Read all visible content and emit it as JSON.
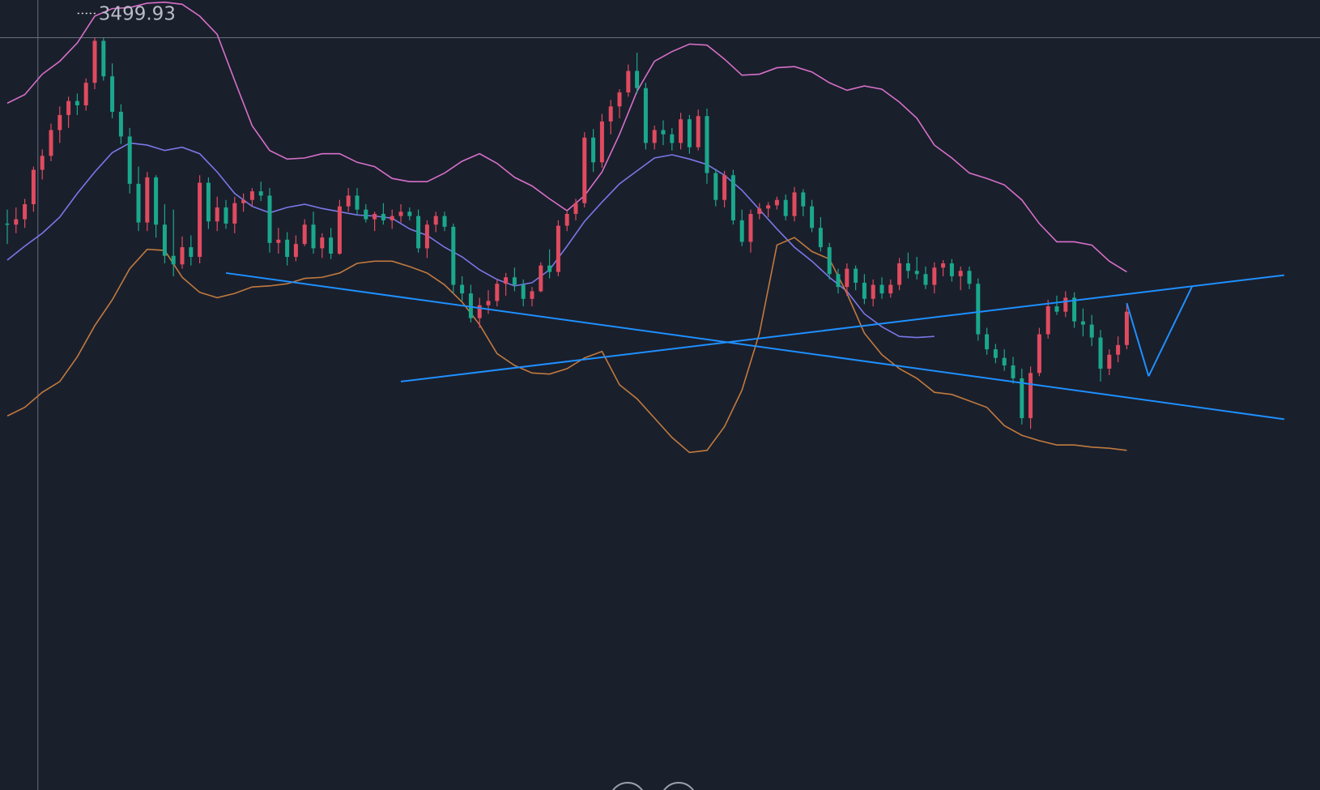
{
  "chart_data": {
    "type": "candlestick",
    "title": "",
    "xlabel": "",
    "ylabel": "",
    "ylim": [
      2800,
      3535
    ],
    "x_count": 146,
    "grid": false,
    "crosshair": {
      "price": 3499.93,
      "bar": 3.5
    },
    "peak_label": "3499.93",
    "colors": {
      "background": "#1a1f2c",
      "up": "#e04b5f",
      "down": "#1aa88c",
      "boll_upper": "#d670c8",
      "boll_mid": "#7a78e8",
      "boll_lower": "#c07a3e",
      "trendline": "#1e90ff",
      "crosshair": "#6a6f7c"
    },
    "candles": [
      [
        3327,
        3340,
        3308,
        3326
      ],
      [
        3326,
        3342,
        3318,
        3331
      ],
      [
        3331,
        3350,
        3323,
        3345
      ],
      [
        3345,
        3380,
        3338,
        3377
      ],
      [
        3377,
        3396,
        3368,
        3390
      ],
      [
        3390,
        3420,
        3385,
        3414
      ],
      [
        3414,
        3436,
        3402,
        3428
      ],
      [
        3428,
        3445,
        3416,
        3441
      ],
      [
        3441,
        3448,
        3428,
        3437
      ],
      [
        3437,
        3462,
        3432,
        3458
      ],
      [
        3458,
        3500,
        3452,
        3497
      ],
      [
        3497,
        3500,
        3460,
        3464
      ],
      [
        3464,
        3476,
        3425,
        3431
      ],
      [
        3431,
        3438,
        3401,
        3408
      ],
      [
        3408,
        3416,
        3355,
        3364
      ],
      [
        3364,
        3380,
        3320,
        3328
      ],
      [
        3328,
        3375,
        3320,
        3370
      ],
      [
        3370,
        3372,
        3314,
        3326
      ],
      [
        3326,
        3345,
        3290,
        3297
      ],
      [
        3297,
        3340,
        3278,
        3289
      ],
      [
        3289,
        3315,
        3285,
        3305
      ],
      [
        3305,
        3316,
        3288,
        3296
      ],
      [
        3296,
        3372,
        3290,
        3365
      ],
      [
        3365,
        3370,
        3322,
        3329
      ],
      [
        3329,
        3352,
        3320,
        3342
      ],
      [
        3342,
        3349,
        3322,
        3327
      ],
      [
        3327,
        3352,
        3318,
        3346
      ],
      [
        3346,
        3355,
        3338,
        3349
      ],
      [
        3349,
        3360,
        3343,
        3357
      ],
      [
        3357,
        3366,
        3348,
        3353
      ],
      [
        3353,
        3360,
        3300,
        3309
      ],
      [
        3309,
        3323,
        3299,
        3312
      ],
      [
        3312,
        3319,
        3288,
        3296
      ],
      [
        3296,
        3316,
        3292,
        3308
      ],
      [
        3308,
        3331,
        3306,
        3326
      ],
      [
        3326,
        3338,
        3299,
        3304
      ],
      [
        3304,
        3318,
        3295,
        3314
      ],
      [
        3314,
        3323,
        3294,
        3299
      ],
      [
        3299,
        3349,
        3298,
        3343
      ],
      [
        3343,
        3360,
        3338,
        3353
      ],
      [
        3353,
        3360,
        3335,
        3340
      ],
      [
        3340,
        3345,
        3328,
        3331
      ],
      [
        3331,
        3338,
        3320,
        3336
      ],
      [
        3336,
        3346,
        3326,
        3330
      ],
      [
        3330,
        3340,
        3322,
        3334
      ],
      [
        3334,
        3345,
        3328,
        3338
      ],
      [
        3338,
        3342,
        3330,
        3334
      ],
      [
        3334,
        3340,
        3300,
        3304
      ],
      [
        3304,
        3330,
        3295,
        3326
      ],
      [
        3326,
        3338,
        3319,
        3334
      ],
      [
        3334,
        3338,
        3320,
        3324
      ],
      [
        3324,
        3327,
        3262,
        3270
      ],
      [
        3270,
        3278,
        3255,
        3262
      ],
      [
        3262,
        3270,
        3235,
        3239
      ],
      [
        3239,
        3258,
        3230,
        3251
      ],
      [
        3251,
        3265,
        3243,
        3255
      ],
      [
        3255,
        3275,
        3250,
        3271
      ],
      [
        3271,
        3281,
        3260,
        3277
      ],
      [
        3277,
        3286,
        3264,
        3270
      ],
      [
        3270,
        3275,
        3250,
        3257
      ],
      [
        3257,
        3268,
        3250,
        3264
      ],
      [
        3264,
        3291,
        3263,
        3288
      ],
      [
        3288,
        3303,
        3276,
        3282
      ],
      [
        3282,
        3330,
        3278,
        3325
      ],
      [
        3325,
        3338,
        3320,
        3336
      ],
      [
        3336,
        3350,
        3330,
        3346
      ],
      [
        3346,
        3412,
        3342,
        3407
      ],
      [
        3407,
        3415,
        3375,
        3384
      ],
      [
        3384,
        3429,
        3379,
        3422
      ],
      [
        3422,
        3442,
        3410,
        3436
      ],
      [
        3436,
        3452,
        3425,
        3449
      ],
      [
        3449,
        3475,
        3445,
        3469
      ],
      [
        3469,
        3486,
        3448,
        3453
      ],
      [
        3453,
        3458,
        3396,
        3402
      ],
      [
        3402,
        3418,
        3396,
        3414
      ],
      [
        3414,
        3423,
        3400,
        3410
      ],
      [
        3410,
        3416,
        3395,
        3402
      ],
      [
        3402,
        3430,
        3396,
        3424
      ],
      [
        3424,
        3428,
        3392,
        3398
      ],
      [
        3398,
        3433,
        3395,
        3427
      ],
      [
        3427,
        3434,
        3364,
        3374
      ],
      [
        3374,
        3378,
        3343,
        3349
      ],
      [
        3349,
        3376,
        3342,
        3372
      ],
      [
        3372,
        3377,
        3326,
        3330
      ],
      [
        3330,
        3340,
        3306,
        3310
      ],
      [
        3310,
        3340,
        3300,
        3336
      ],
      [
        3336,
        3346,
        3331,
        3341
      ],
      [
        3341,
        3347,
        3333,
        3344
      ],
      [
        3344,
        3352,
        3340,
        3349
      ],
      [
        3349,
        3354,
        3330,
        3334
      ],
      [
        3334,
        3361,
        3329,
        3356
      ],
      [
        3356,
        3359,
        3334,
        3343
      ],
      [
        3343,
        3349,
        3319,
        3323
      ],
      [
        3323,
        3333,
        3301,
        3305
      ],
      [
        3305,
        3309,
        3275,
        3280
      ],
      [
        3280,
        3285,
        3262,
        3268
      ],
      [
        3268,
        3290,
        3260,
        3285
      ],
      [
        3285,
        3288,
        3265,
        3272
      ],
      [
        3272,
        3280,
        3252,
        3257
      ],
      [
        3257,
        3275,
        3250,
        3270
      ],
      [
        3270,
        3277,
        3257,
        3262
      ],
      [
        3262,
        3275,
        3258,
        3270
      ],
      [
        3270,
        3295,
        3265,
        3290
      ],
      [
        3290,
        3300,
        3276,
        3283
      ],
      [
        3283,
        3296,
        3275,
        3280
      ],
      [
        3280,
        3287,
        3266,
        3270
      ],
      [
        3270,
        3291,
        3262,
        3286
      ],
      [
        3286,
        3293,
        3278,
        3290
      ],
      [
        3290,
        3294,
        3273,
        3278
      ],
      [
        3278,
        3287,
        3265,
        3283
      ],
      [
        3283,
        3287,
        3266,
        3271
      ],
      [
        3271,
        3276,
        3218,
        3224
      ],
      [
        3224,
        3230,
        3205,
        3210
      ],
      [
        3210,
        3215,
        3197,
        3202
      ],
      [
        3202,
        3210,
        3190,
        3195
      ],
      [
        3195,
        3203,
        3178,
        3183
      ],
      [
        3183,
        3192,
        3140,
        3146
      ],
      [
        3146,
        3194,
        3136,
        3188
      ],
      [
        3188,
        3230,
        3185,
        3224
      ],
      [
        3224,
        3256,
        3220,
        3250
      ],
      [
        3250,
        3260,
        3242,
        3245
      ],
      [
        3245,
        3264,
        3240,
        3258
      ],
      [
        3258,
        3263,
        3230,
        3236
      ],
      [
        3236,
        3248,
        3222,
        3233
      ],
      [
        3233,
        3242,
        3213,
        3221
      ],
      [
        3221,
        3228,
        3180,
        3192
      ],
      [
        3192,
        3210,
        3186,
        3205
      ],
      [
        3205,
        3222,
        3198,
        3214
      ],
      [
        3214,
        3252,
        3210,
        3245
      ]
    ],
    "boll_upper_points": [
      [
        0,
        3439
      ],
      [
        2,
        3447
      ],
      [
        4,
        3466
      ],
      [
        6,
        3478
      ],
      [
        8,
        3495
      ],
      [
        10,
        3520
      ],
      [
        12,
        3527
      ],
      [
        14,
        3528
      ],
      [
        16,
        3532
      ],
      [
        18,
        3533
      ],
      [
        20,
        3531
      ],
      [
        22,
        3520
      ],
      [
        24,
        3503
      ],
      [
        26,
        3460
      ],
      [
        28,
        3418
      ],
      [
        30,
        3395
      ],
      [
        32,
        3387
      ],
      [
        34,
        3388
      ],
      [
        36,
        3392
      ],
      [
        38,
        3392
      ],
      [
        40,
        3384
      ],
      [
        42,
        3380
      ],
      [
        44,
        3369
      ],
      [
        46,
        3366
      ],
      [
        48,
        3366
      ],
      [
        50,
        3374
      ],
      [
        52,
        3385
      ],
      [
        54,
        3392
      ],
      [
        56,
        3383
      ],
      [
        58,
        3370
      ],
      [
        60,
        3362
      ],
      [
        62,
        3350
      ],
      [
        64,
        3339
      ],
      [
        66,
        3353
      ],
      [
        68,
        3375
      ],
      [
        70,
        3410
      ],
      [
        72,
        3450
      ],
      [
        74,
        3478
      ],
      [
        76,
        3487
      ],
      [
        78,
        3494
      ],
      [
        80,
        3493
      ],
      [
        82,
        3480
      ],
      [
        84,
        3465
      ],
      [
        86,
        3466
      ],
      [
        88,
        3472
      ],
      [
        90,
        3473
      ],
      [
        92,
        3468
      ],
      [
        94,
        3458
      ],
      [
        96,
        3451
      ],
      [
        98,
        3455
      ],
      [
        100,
        3452
      ],
      [
        102,
        3440
      ],
      [
        104,
        3425
      ],
      [
        106,
        3400
      ],
      [
        108,
        3388
      ],
      [
        110,
        3374
      ],
      [
        112,
        3369
      ],
      [
        114,
        3363
      ],
      [
        116,
        3349
      ],
      [
        118,
        3327
      ],
      [
        120,
        3310
      ],
      [
        122,
        3310
      ],
      [
        124,
        3307
      ],
      [
        126,
        3292
      ],
      [
        128,
        3282
      ]
    ],
    "boll_mid_points": [
      [
        0,
        3293
      ],
      [
        2,
        3306
      ],
      [
        4,
        3318
      ],
      [
        6,
        3333
      ],
      [
        8,
        3355
      ],
      [
        10,
        3375
      ],
      [
        12,
        3393
      ],
      [
        14,
        3402
      ],
      [
        16,
        3400
      ],
      [
        18,
        3395
      ],
      [
        20,
        3398
      ],
      [
        22,
        3392
      ],
      [
        24,
        3375
      ],
      [
        26,
        3355
      ],
      [
        28,
        3343
      ],
      [
        30,
        3337
      ],
      [
        32,
        3342
      ],
      [
        34,
        3345
      ],
      [
        36,
        3341
      ],
      [
        38,
        3338
      ],
      [
        40,
        3335
      ],
      [
        42,
        3334
      ],
      [
        44,
        3332
      ],
      [
        46,
        3322
      ],
      [
        48,
        3316
      ],
      [
        50,
        3305
      ],
      [
        52,
        3296
      ],
      [
        54,
        3284
      ],
      [
        56,
        3275
      ],
      [
        58,
        3269
      ],
      [
        60,
        3272
      ],
      [
        62,
        3284
      ],
      [
        64,
        3306
      ],
      [
        66,
        3329
      ],
      [
        68,
        3347
      ],
      [
        70,
        3364
      ],
      [
        72,
        3376
      ],
      [
        74,
        3388
      ],
      [
        76,
        3391
      ],
      [
        78,
        3387
      ],
      [
        80,
        3382
      ],
      [
        82,
        3372
      ],
      [
        84,
        3358
      ],
      [
        86,
        3340
      ],
      [
        88,
        3322
      ],
      [
        90,
        3305
      ],
      [
        92,
        3292
      ],
      [
        94,
        3277
      ],
      [
        96,
        3264
      ],
      [
        98,
        3243
      ],
      [
        100,
        3231
      ],
      [
        102,
        3222
      ],
      [
        104,
        3221
      ],
      [
        106,
        3222
      ]
    ],
    "boll_lower_points": [
      [
        0,
        3148
      ],
      [
        2,
        3156
      ],
      [
        4,
        3170
      ],
      [
        6,
        3180
      ],
      [
        8,
        3203
      ],
      [
        10,
        3232
      ],
      [
        12,
        3256
      ],
      [
        14,
        3285
      ],
      [
        16,
        3303
      ],
      [
        18,
        3302
      ],
      [
        20,
        3277
      ],
      [
        22,
        3263
      ],
      [
        24,
        3258
      ],
      [
        26,
        3262
      ],
      [
        28,
        3268
      ],
      [
        30,
        3269
      ],
      [
        32,
        3271
      ],
      [
        34,
        3276
      ],
      [
        36,
        3277
      ],
      [
        38,
        3281
      ],
      [
        40,
        3290
      ],
      [
        42,
        3292
      ],
      [
        44,
        3292
      ],
      [
        46,
        3287
      ],
      [
        48,
        3281
      ],
      [
        50,
        3270
      ],
      [
        52,
        3254
      ],
      [
        54,
        3233
      ],
      [
        56,
        3206
      ],
      [
        58,
        3195
      ],
      [
        60,
        3188
      ],
      [
        62,
        3187
      ],
      [
        64,
        3192
      ],
      [
        66,
        3202
      ],
      [
        68,
        3208
      ],
      [
        70,
        3177
      ],
      [
        72,
        3164
      ],
      [
        74,
        3146
      ],
      [
        76,
        3128
      ],
      [
        78,
        3114
      ],
      [
        80,
        3116
      ],
      [
        82,
        3138
      ],
      [
        84,
        3172
      ],
      [
        86,
        3225
      ],
      [
        88,
        3307
      ],
      [
        90,
        3314
      ],
      [
        92,
        3301
      ],
      [
        94,
        3294
      ],
      [
        96,
        3262
      ],
      [
        98,
        3225
      ],
      [
        100,
        3205
      ],
      [
        102,
        3192
      ],
      [
        104,
        3183
      ],
      [
        106,
        3170
      ],
      [
        108,
        3168
      ],
      [
        110,
        3162
      ],
      [
        112,
        3156
      ],
      [
        114,
        3139
      ],
      [
        116,
        3130
      ],
      [
        118,
        3125
      ],
      [
        120,
        3121
      ],
      [
        122,
        3121
      ],
      [
        124,
        3119
      ],
      [
        126,
        3118
      ],
      [
        128,
        3116
      ]
    ],
    "trendlines": [
      {
        "from": [
          25.0,
          3281
        ],
        "to": [
          146.0,
          3145
        ]
      },
      {
        "from": [
          45.0,
          3180
        ],
        "to": [
          146.0,
          3279
        ]
      },
      {
        "from": [
          128.0,
          3253
        ],
        "to": [
          130.5,
          3185
        ]
      },
      {
        "from": [
          130.5,
          3185
        ],
        "to": [
          135.5,
          3269
        ]
      }
    ],
    "buttons": [
      "circle-button",
      "circle-button"
    ]
  }
}
